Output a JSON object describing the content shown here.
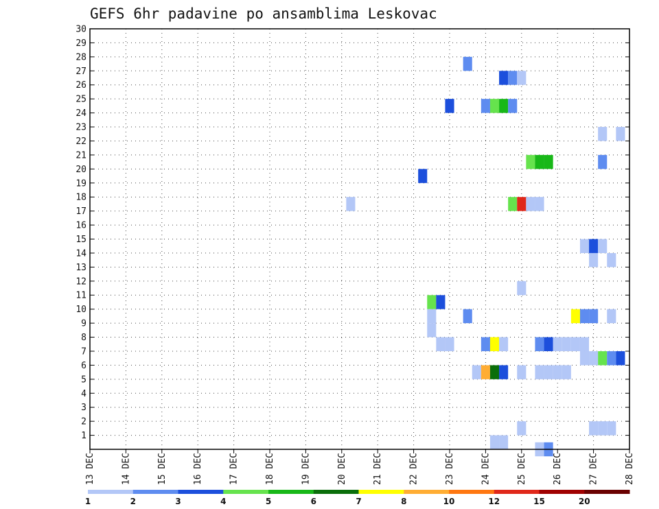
{
  "chart_data": {
    "type": "heatmap",
    "title": "GEFS 6hr padavine po ansamblima Leskovac",
    "xlabel": "",
    "ylabel": "",
    "x_tick_labels": [
      "13 DEC",
      "14 DEC",
      "15 DEC",
      "16 DEC",
      "17 DEC",
      "18 DEC",
      "19 DEC",
      "20 DEC",
      "21 DEC",
      "22 DEC",
      "23 DEC",
      "24 DEC",
      "25 DEC",
      "26 DEC",
      "27 DEC",
      "28 DEC"
    ],
    "y_ticks": [
      1,
      2,
      3,
      4,
      5,
      6,
      7,
      8,
      9,
      10,
      11,
      12,
      13,
      14,
      15,
      16,
      17,
      18,
      19,
      20,
      21,
      22,
      23,
      24,
      25,
      26,
      27,
      28,
      29,
      30
    ],
    "x_range_days": [
      0,
      15
    ],
    "y_range": [
      0,
      30
    ],
    "grid": true,
    "cell_width_days": 0.25,
    "colorbar": {
      "placement": "bottom",
      "colors": [
        "#b3c7f7",
        "#5e8cf0",
        "#1c4fdc",
        "#66e34d",
        "#18b818",
        "#0a6e0a",
        "#ffff00",
        "#ffad33",
        "#ff7711",
        "#e0281a",
        "#a00000",
        "#6a0000"
      ],
      "labels": [
        "1",
        "2",
        "3",
        "4",
        "5",
        "6",
        "7",
        "8",
        "10",
        "12",
        "15",
        "20"
      ]
    },
    "cells": [
      {
        "x": 10.5,
        "y": 27.5,
        "v": 2
      },
      {
        "x": 11.5,
        "y": 26.5,
        "v": 3
      },
      {
        "x": 11.75,
        "y": 26.5,
        "v": 2
      },
      {
        "x": 12.0,
        "y": 26.5,
        "v": 1
      },
      {
        "x": 10.0,
        "y": 24.5,
        "v": 3
      },
      {
        "x": 11.0,
        "y": 24.5,
        "v": 2
      },
      {
        "x": 11.25,
        "y": 24.5,
        "v": 4
      },
      {
        "x": 11.5,
        "y": 24.5,
        "v": 5
      },
      {
        "x": 11.75,
        "y": 24.5,
        "v": 2
      },
      {
        "x": 14.25,
        "y": 22.5,
        "v": 1
      },
      {
        "x": 14.75,
        "y": 22.5,
        "v": 1
      },
      {
        "x": 12.25,
        "y": 20.5,
        "v": 4
      },
      {
        "x": 12.5,
        "y": 20.5,
        "v": 5
      },
      {
        "x": 12.75,
        "y": 20.5,
        "v": 5
      },
      {
        "x": 14.25,
        "y": 20.5,
        "v": 2
      },
      {
        "x": 9.25,
        "y": 19.5,
        "v": 3
      },
      {
        "x": 7.25,
        "y": 17.5,
        "v": 1
      },
      {
        "x": 11.75,
        "y": 17.5,
        "v": 4
      },
      {
        "x": 12.0,
        "y": 17.5,
        "v": 12
      },
      {
        "x": 12.25,
        "y": 17.5,
        "v": 1
      },
      {
        "x": 12.5,
        "y": 17.5,
        "v": 1
      },
      {
        "x": 13.75,
        "y": 14.5,
        "v": 1
      },
      {
        "x": 14.0,
        "y": 14.5,
        "v": 3
      },
      {
        "x": 14.25,
        "y": 14.5,
        "v": 1
      },
      {
        "x": 14.0,
        "y": 13.5,
        "v": 1
      },
      {
        "x": 14.5,
        "y": 13.5,
        "v": 1
      },
      {
        "x": 12.0,
        "y": 11.5,
        "v": 1
      },
      {
        "x": 9.5,
        "y": 10.5,
        "v": 4
      },
      {
        "x": 9.75,
        "y": 10.5,
        "v": 3
      },
      {
        "x": 9.5,
        "y": 9.5,
        "v": 1
      },
      {
        "x": 10.5,
        "y": 9.5,
        "v": 2
      },
      {
        "x": 13.5,
        "y": 9.5,
        "v": 7
      },
      {
        "x": 13.75,
        "y": 9.5,
        "v": 2
      },
      {
        "x": 14.0,
        "y": 9.5,
        "v": 2
      },
      {
        "x": 14.5,
        "y": 9.5,
        "v": 1
      },
      {
        "x": 9.5,
        "y": 8.5,
        "v": 1
      },
      {
        "x": 9.75,
        "y": 7.5,
        "v": 1
      },
      {
        "x": 10.0,
        "y": 7.5,
        "v": 1
      },
      {
        "x": 11.0,
        "y": 7.5,
        "v": 2
      },
      {
        "x": 11.25,
        "y": 7.5,
        "v": 7
      },
      {
        "x": 11.5,
        "y": 7.5,
        "v": 1
      },
      {
        "x": 12.5,
        "y": 7.5,
        "v": 2
      },
      {
        "x": 12.75,
        "y": 7.5,
        "v": 3
      },
      {
        "x": 13.0,
        "y": 7.5,
        "v": 1
      },
      {
        "x": 13.25,
        "y": 7.5,
        "v": 1
      },
      {
        "x": 13.5,
        "y": 7.5,
        "v": 1
      },
      {
        "x": 13.75,
        "y": 7.5,
        "v": 1
      },
      {
        "x": 13.75,
        "y": 6.5,
        "v": 1
      },
      {
        "x": 14.0,
        "y": 6.5,
        "v": 1
      },
      {
        "x": 14.25,
        "y": 6.5,
        "v": 4
      },
      {
        "x": 14.5,
        "y": 6.5,
        "v": 2
      },
      {
        "x": 14.75,
        "y": 6.5,
        "v": 3
      },
      {
        "x": 10.75,
        "y": 5.5,
        "v": 1
      },
      {
        "x": 11.0,
        "y": 5.5,
        "v": 8
      },
      {
        "x": 11.25,
        "y": 5.5,
        "v": 6
      },
      {
        "x": 11.5,
        "y": 5.5,
        "v": 3
      },
      {
        "x": 12.0,
        "y": 5.5,
        "v": 1
      },
      {
        "x": 12.5,
        "y": 5.5,
        "v": 1
      },
      {
        "x": 12.75,
        "y": 5.5,
        "v": 1
      },
      {
        "x": 13.0,
        "y": 5.5,
        "v": 1
      },
      {
        "x": 13.25,
        "y": 5.5,
        "v": 1
      },
      {
        "x": 12.0,
        "y": 1.5,
        "v": 1
      },
      {
        "x": 14.0,
        "y": 1.5,
        "v": 1
      },
      {
        "x": 14.25,
        "y": 1.5,
        "v": 1
      },
      {
        "x": 14.5,
        "y": 1.5,
        "v": 1
      },
      {
        "x": 11.25,
        "y": 0.5,
        "v": 1
      },
      {
        "x": 11.5,
        "y": 0.5,
        "v": 1
      },
      {
        "x": 12.5,
        "y": 0.0,
        "v": 1
      },
      {
        "x": 12.75,
        "y": 0.0,
        "v": 2
      }
    ]
  }
}
